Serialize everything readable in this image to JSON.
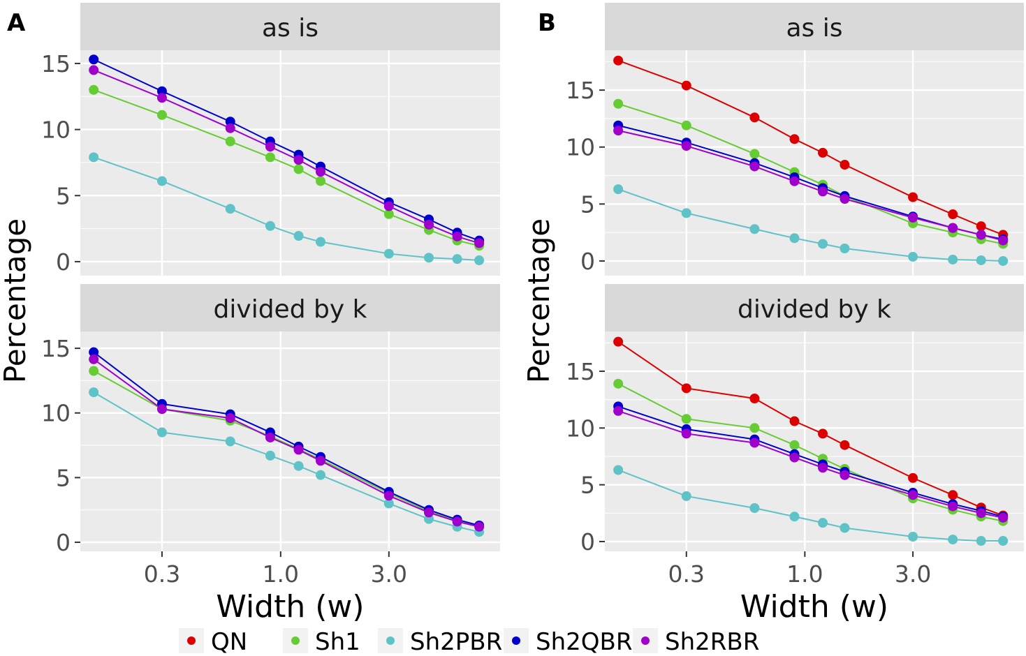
{
  "chart_data": {
    "type": "line",
    "legend": {
      "position": "bottom",
      "entries": [
        "QN",
        "Sh1",
        "Sh2PBR",
        "Sh2QBR",
        "Sh2RBR"
      ]
    },
    "colors": {
      "QN": "#dd0000",
      "Sh1": "#66cc33",
      "Sh2PBR": "#5ec2c6",
      "Sh2QBR": "#0000cc",
      "Sh2RBR": "#a000cc"
    },
    "x": [
      0.15,
      0.3,
      0.6,
      0.9,
      1.2,
      1.5,
      3,
      4.5,
      6,
      7.5
    ],
    "xlabel": "Width (w)",
    "ylabel": "Percentage",
    "x_scale": "log10",
    "xticks": [
      0.3,
      1.0,
      3.0
    ],
    "xtick_labels": [
      "0.3",
      "1.0",
      "3.0"
    ],
    "grid": true,
    "panels": [
      {
        "figure": "A",
        "strip": "as is",
        "ylim": [
          -1.06,
          16.0
        ],
        "yticks": [
          0,
          5,
          10,
          15
        ],
        "series": [
          {
            "name": "Sh1",
            "values": [
              13.0,
              11.1,
              9.1,
              7.9,
              7.0,
              6.1,
              3.6,
              2.4,
              1.6,
              1.2
            ]
          },
          {
            "name": "Sh2PBR",
            "values": [
              7.9,
              6.1,
              4.0,
              2.7,
              1.95,
              1.5,
              0.6,
              0.3,
              0.2,
              0.1
            ]
          },
          {
            "name": "Sh2QBR",
            "values": [
              15.3,
              12.9,
              10.6,
              9.1,
              8.1,
              7.2,
              4.5,
              3.2,
              2.2,
              1.6
            ]
          },
          {
            "name": "Sh2RBR",
            "values": [
              14.5,
              12.4,
              10.1,
              8.7,
              7.7,
              6.8,
              4.2,
              2.8,
              1.9,
              1.4
            ]
          }
        ]
      },
      {
        "figure": "A",
        "strip": "divided by k",
        "ylim": [
          -0.7,
          16.3
        ],
        "yticks": [
          0,
          5,
          10,
          15
        ],
        "series": [
          {
            "name": "Sh1",
            "values": [
              13.25,
              10.3,
              9.4,
              8.2,
              7.2,
              6.4,
              3.8,
              2.4,
              1.7,
              1.3
            ]
          },
          {
            "name": "Sh2PBR",
            "values": [
              11.6,
              8.5,
              7.8,
              6.7,
              5.9,
              5.2,
              3.0,
              1.8,
              1.2,
              0.8
            ]
          },
          {
            "name": "Sh2QBR",
            "values": [
              14.7,
              10.7,
              9.9,
              8.5,
              7.4,
              6.6,
              3.9,
              2.5,
              1.75,
              1.3
            ]
          },
          {
            "name": "Sh2RBR",
            "values": [
              14.15,
              10.3,
              9.6,
              8.1,
              7.15,
              6.3,
              3.6,
              2.3,
              1.6,
              1.2
            ]
          }
        ]
      },
      {
        "figure": "B",
        "strip": "as is",
        "ylim": [
          -1.29,
          18.5
        ],
        "yticks": [
          0,
          5,
          10,
          15
        ],
        "series": [
          {
            "name": "QN",
            "values": [
              17.6,
              15.4,
              12.6,
              10.7,
              9.5,
              8.45,
              5.6,
              4.1,
              3.05,
              2.3
            ]
          },
          {
            "name": "Sh1",
            "values": [
              13.8,
              11.9,
              9.4,
              7.8,
              6.7,
              5.7,
              3.3,
              2.5,
              1.9,
              1.5
            ]
          },
          {
            "name": "Sh2PBR",
            "values": [
              6.3,
              4.2,
              2.8,
              2.0,
              1.5,
              1.1,
              0.37,
              0.12,
              0.06,
              0.0
            ]
          },
          {
            "name": "Sh2QBR",
            "values": [
              11.9,
              10.4,
              8.6,
              7.35,
              6.4,
              5.7,
              3.9,
              2.9,
              2.3,
              1.9
            ]
          },
          {
            "name": "Sh2RBR",
            "values": [
              11.45,
              10.1,
              8.3,
              7.0,
              6.1,
              5.45,
              3.8,
              2.9,
              2.3,
              1.8
            ]
          }
        ]
      },
      {
        "figure": "B",
        "strip": "divided by k",
        "ylim": [
          -0.86,
          18.5
        ],
        "yticks": [
          0,
          5,
          10,
          15
        ],
        "series": [
          {
            "name": "QN",
            "values": [
              17.6,
              13.5,
              12.6,
              10.6,
              9.5,
              8.5,
              5.6,
              4.1,
              3.0,
              2.3
            ]
          },
          {
            "name": "Sh1",
            "values": [
              13.9,
              10.8,
              10.0,
              8.5,
              7.3,
              6.4,
              3.8,
              2.8,
              2.2,
              1.8
            ]
          },
          {
            "name": "Sh2PBR",
            "values": [
              6.3,
              4.0,
              2.95,
              2.2,
              1.65,
              1.2,
              0.43,
              0.18,
              0.06,
              0.06
            ]
          },
          {
            "name": "Sh2QBR",
            "values": [
              11.9,
              9.9,
              9.0,
              7.7,
              6.8,
              6.15,
              4.3,
              3.3,
              2.7,
              2.2
            ]
          },
          {
            "name": "Sh2RBR",
            "values": [
              11.5,
              9.5,
              8.7,
              7.4,
              6.5,
              5.85,
              4.1,
              3.1,
              2.5,
              2.1
            ]
          }
        ]
      }
    ]
  }
}
